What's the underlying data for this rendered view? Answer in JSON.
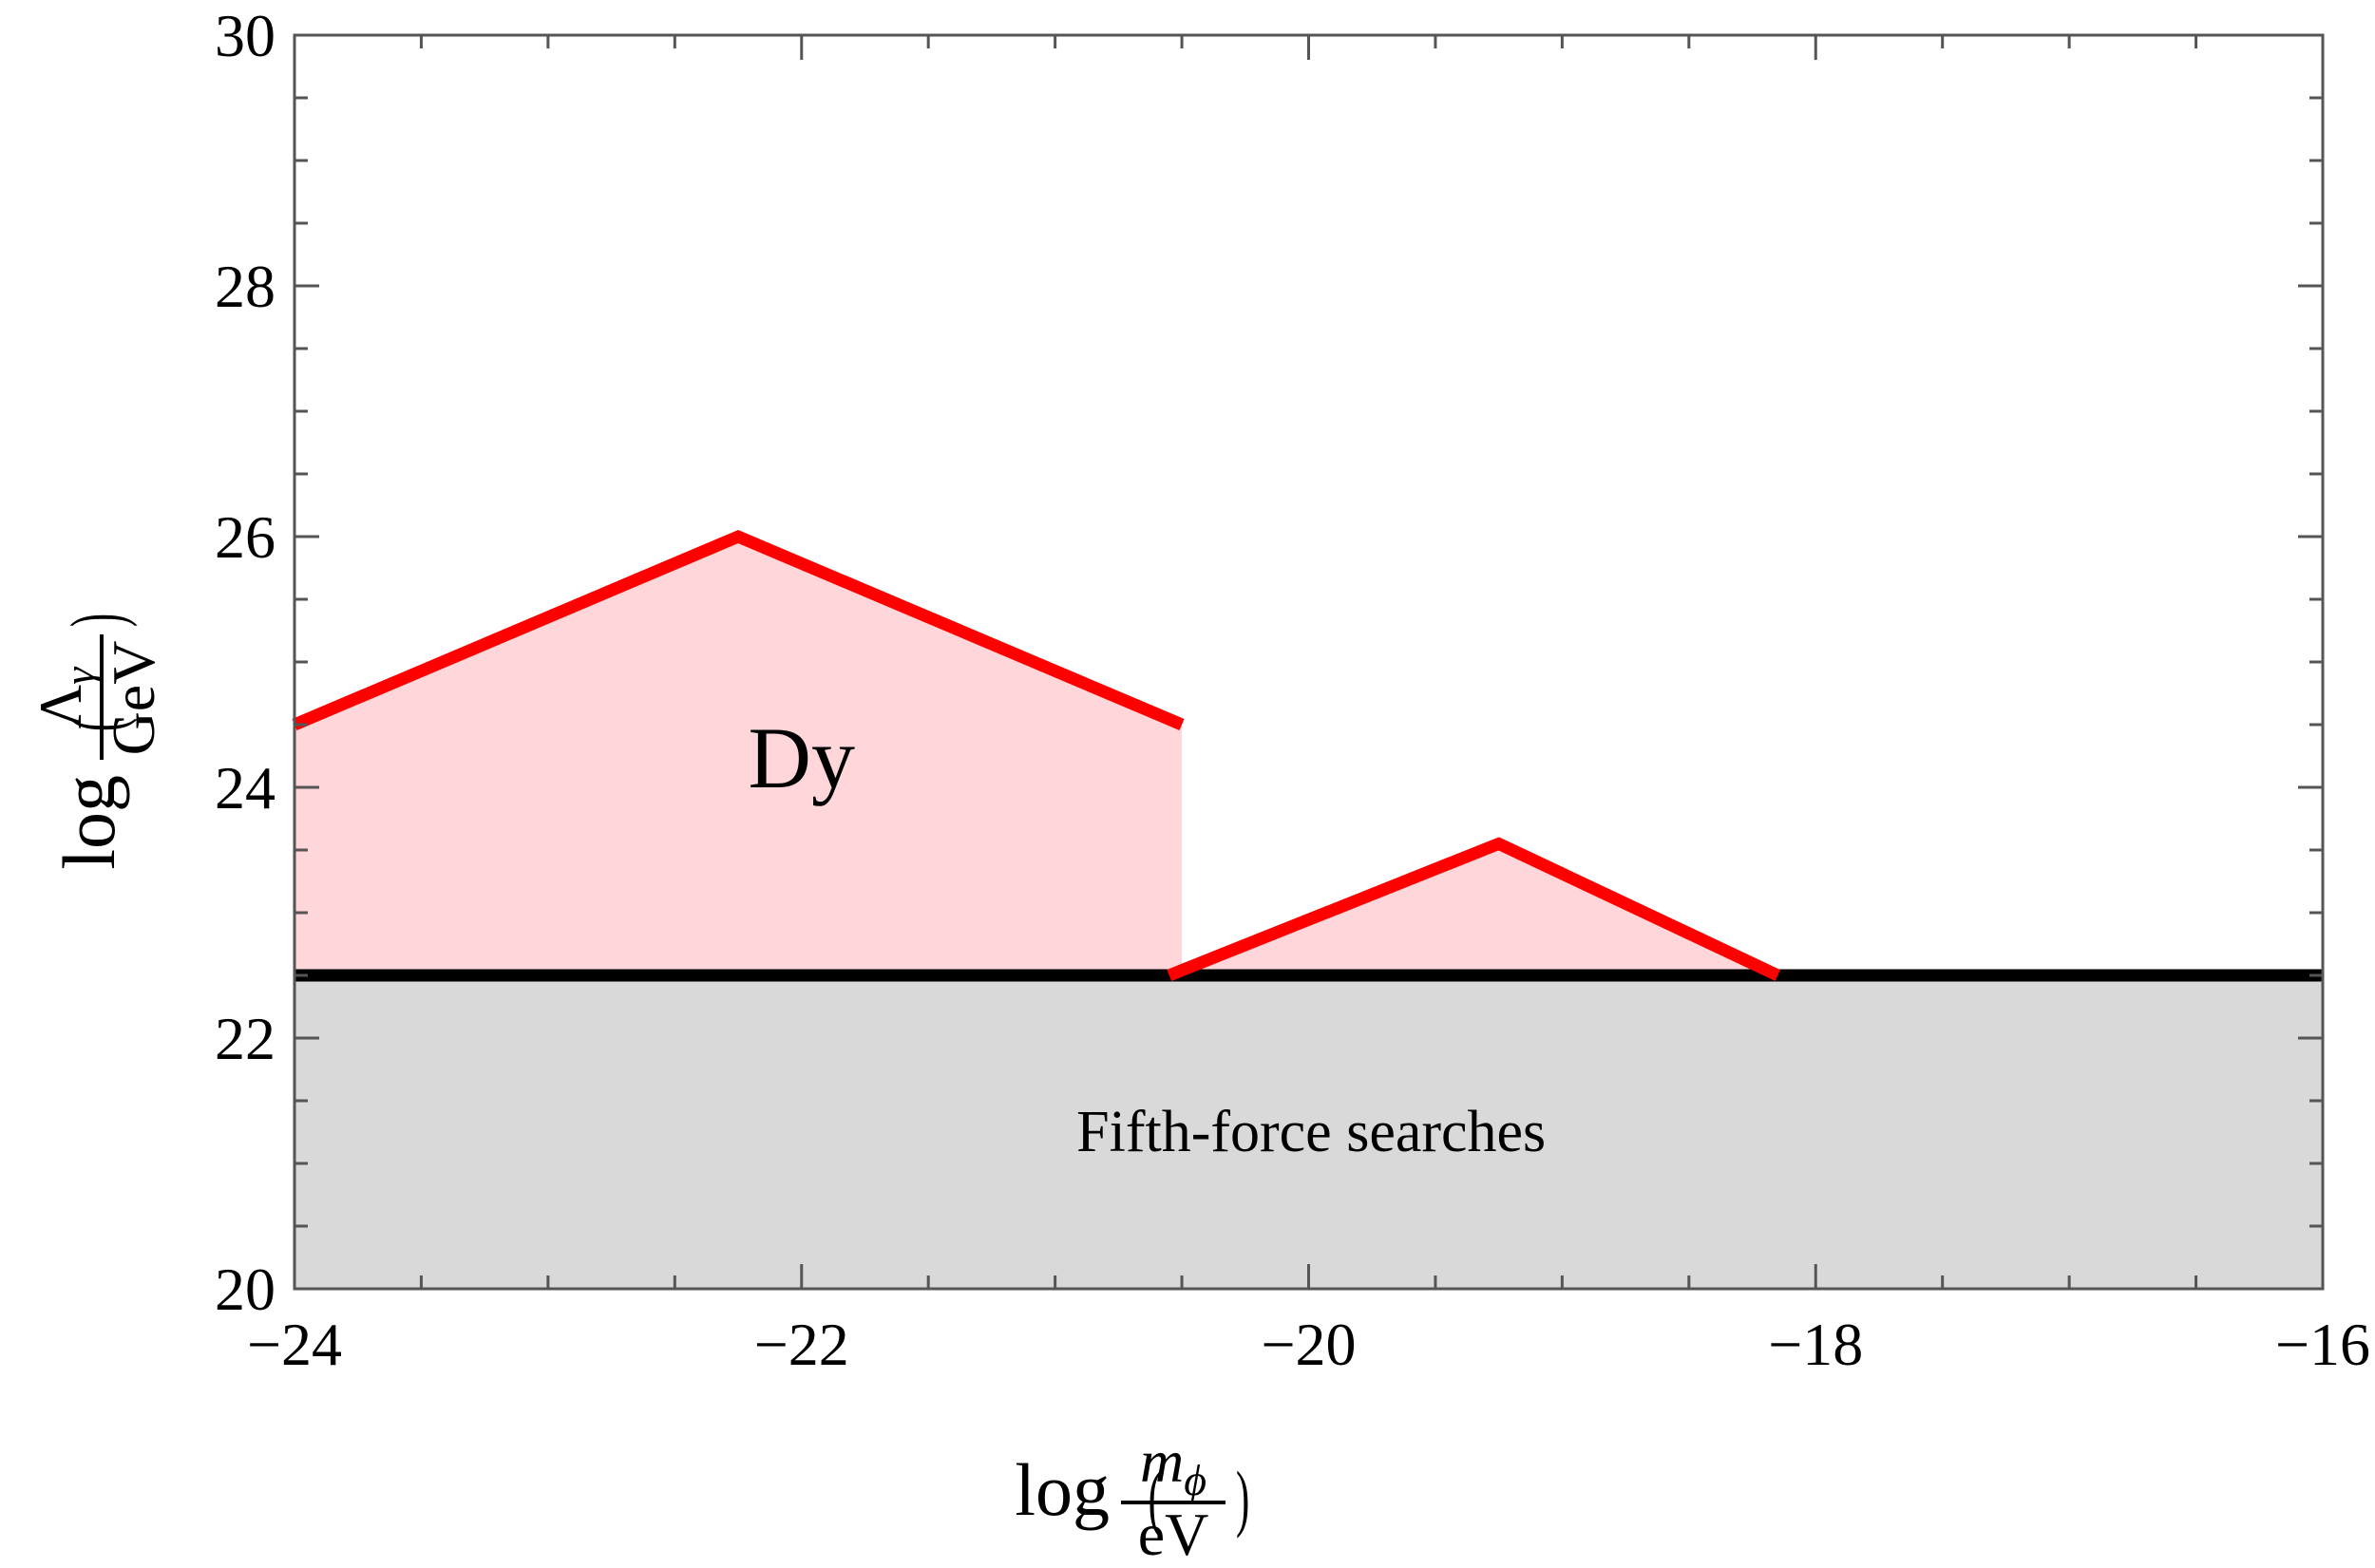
{
  "chart_data": {
    "type": "area",
    "title": "",
    "xlabel": {
      "function": "log",
      "numerator": "m",
      "numerator_subscript": "ϕ",
      "denominator": "eV"
    },
    "ylabel": {
      "function": "log",
      "numerator": "Λ",
      "numerator_subscript": "γ",
      "denominator": "GeV"
    },
    "xlim": [
      -24,
      -16
    ],
    "ylim": [
      20,
      30
    ],
    "xticks": [
      -24,
      -22,
      -20,
      -18,
      -16
    ],
    "xtick_labels": [
      "−24",
      "−22",
      "−20",
      "−18",
      "−16"
    ],
    "yticks": [
      20,
      22,
      24,
      26,
      28,
      30
    ],
    "ytick_labels": [
      "20",
      "22",
      "24",
      "26",
      "28",
      "30"
    ],
    "grid": false,
    "colors": {
      "exclusion_line": "#ff0000",
      "exclusion_fill": "#ffd6d9",
      "fifth_force_fill": "#d9d9d9",
      "fifth_force_line": "#000000"
    },
    "series": [
      {
        "name": "Dy",
        "segments": [
          {
            "x": [
              -24.0,
              -22.25,
              -20.5
            ],
            "y": [
              24.5,
              26.0,
              24.5
            ]
          },
          {
            "x": [
              -20.55,
              -19.25,
              -18.15
            ],
            "y": [
              22.5,
              23.55,
              22.5
            ]
          }
        ]
      },
      {
        "name": "Fifth-force searches",
        "x": [
          -24,
          -16
        ],
        "y": [
          22.5,
          22.5
        ]
      }
    ],
    "annotations": [
      {
        "text": "Dy",
        "x": -22.0,
        "y": 24.0
      },
      {
        "text": "Fifth-force searches",
        "x": -19.99,
        "y": 21.1
      }
    ]
  }
}
